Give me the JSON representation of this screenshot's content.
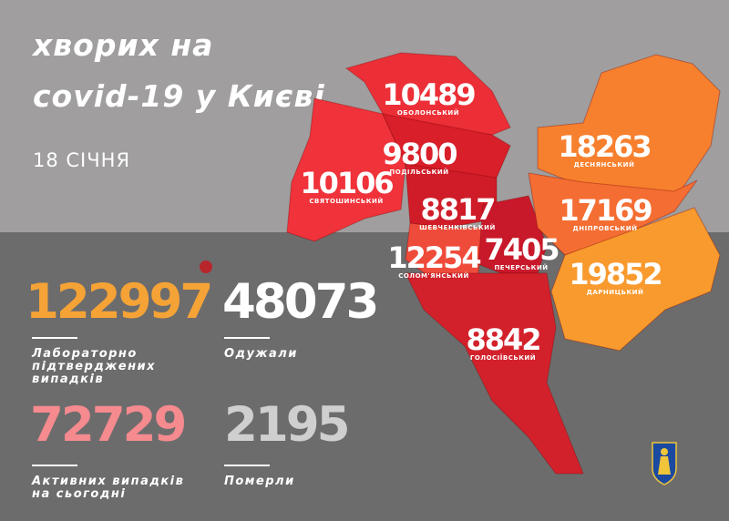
{
  "header": {
    "title_line1": "хворих на",
    "title_line2": "covid-19 у Києві",
    "date": "18 СІЧНЯ"
  },
  "stats": {
    "confirmed": {
      "value": "122997",
      "label_lines": [
        "Лабораторно",
        "підтверджених",
        "випадків"
      ],
      "color": "#f5a336"
    },
    "recovered": {
      "value": "48073",
      "label": "Одужали",
      "color": "#ffffff"
    },
    "active": {
      "value": "72729",
      "label_lines": [
        "Активних випадків",
        "на сьогодні"
      ],
      "color": "#f58a8f"
    },
    "deaths": {
      "value": "2195",
      "label": "Померли",
      "color": "#cfcfcf"
    }
  },
  "districts": [
    {
      "name": "ОБОЛОНСЬКИЙ",
      "cases": "10489",
      "color": "#ec2f37"
    },
    {
      "name": "СВЯТОШИНСЬКИЙ",
      "cases": "10106",
      "color": "#f0323a"
    },
    {
      "name": "ПОДІЛЬСЬКИЙ",
      "cases": "9800",
      "color": "#d81f2a"
    },
    {
      "name": "ШЕВЧЕНКІВСЬКИЙ",
      "cases": "8817",
      "color": "#cf1c28"
    },
    {
      "name": "СОЛОМ'ЯНСЬКИЙ",
      "cases": "12254",
      "color": "#ef4b3a"
    },
    {
      "name": "ПЕЧЕРСЬКИЙ",
      "cases": "7405",
      "color": "#c8192a"
    },
    {
      "name": "ГОЛОСІЇВСЬКИЙ",
      "cases": "8842",
      "color": "#d3212c"
    },
    {
      "name": "ДЕСНЯНСЬКИЙ",
      "cases": "18263",
      "color": "#f7802e"
    },
    {
      "name": "ДНІПРОВСЬКИЙ",
      "cases": "17169",
      "color": "#f46d32"
    },
    {
      "name": "ДАРНИЦЬКИЙ",
      "cases": "19852",
      "color": "#f99a2e"
    }
  ]
}
